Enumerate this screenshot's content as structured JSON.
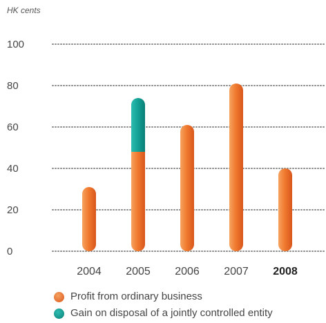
{
  "chart_data": {
    "type": "bar",
    "unit_label": "HK cents",
    "categories": [
      "2004",
      "2005",
      "2006",
      "2007",
      "2008"
    ],
    "highlight_category": "2008",
    "stacked": true,
    "series": [
      {
        "name": "Profit from ordinary business",
        "values": [
          31,
          48,
          61,
          81,
          40
        ],
        "color": "#EE7A2E"
      },
      {
        "name": "Gain on disposal of a jointly controlled entity",
        "values": [
          0,
          26,
          0,
          0,
          0
        ],
        "color": "#1AA39A"
      }
    ],
    "yticks": [
      0,
      20,
      40,
      60,
      80,
      100
    ],
    "ylim": [
      0,
      100
    ],
    "grid": true,
    "grid_style": "dotted",
    "legend_position": "bottom-left"
  }
}
